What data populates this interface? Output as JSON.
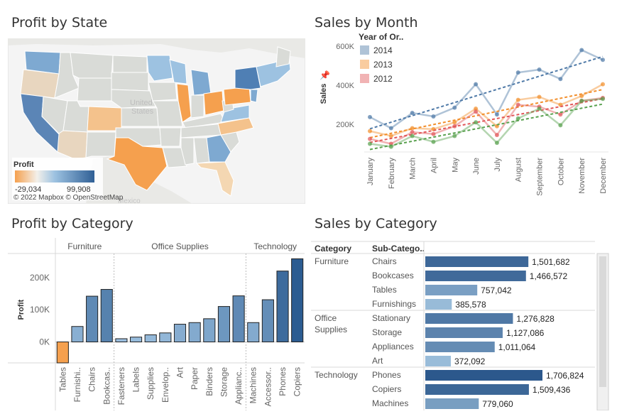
{
  "panels": {
    "map_title": "Profit by State",
    "month_title": "Sales by Month",
    "catprofit_title": "Profit by Category",
    "catsales_title": "Sales by Category"
  },
  "map": {
    "legend_title": "Profit",
    "legend_min": "-29,034",
    "legend_max": "99,908",
    "credit": "© 2022 Mapbox © OpenStreetMap",
    "ghost_labels": [
      "United",
      "States",
      "Mexico"
    ],
    "colors": {
      "negative": "#f5a04e",
      "positive": "#2f5f95",
      "neutral": "#d9d9d6",
      "land": "#e6e6e3",
      "water": "#f5f5f5"
    }
  },
  "chart_data": [
    {
      "type": "line",
      "title": "Sales by Month",
      "ylabel": "Sales",
      "legend_title": "Year of Or..",
      "legend_position": "top-left",
      "x": [
        "January",
        "February",
        "March",
        "April",
        "May",
        "June",
        "July",
        "August",
        "September",
        "October",
        "November",
        "December"
      ],
      "ylim": [
        80000,
        640000
      ],
      "yticks": [
        200000,
        400000,
        600000
      ],
      "ytick_labels": [
        "200K",
        "400K",
        "600K"
      ],
      "trend_lines": true,
      "series": [
        {
          "name": "2014",
          "color": "#4e79a7",
          "values": [
            237000,
            180000,
            258000,
            240000,
            285000,
            405000,
            250000,
            465000,
            480000,
            432000,
            580000,
            530000
          ]
        },
        {
          "name": "2013",
          "color": "#f28e2b",
          "values": [
            165000,
            140000,
            180000,
            175000,
            210000,
            280000,
            190000,
            325000,
            340000,
            300000,
            345000,
            405000
          ]
        },
        {
          "name": "2012",
          "color": "#e15759",
          "values": [
            125000,
            100000,
            160000,
            150000,
            190000,
            265000,
            145000,
            300000,
            290000,
            250000,
            320000,
            335000
          ]
        },
        {
          "name": "",
          "color": "#59a14f",
          "values": [
            100000,
            85000,
            140000,
            110000,
            140000,
            210000,
            105000,
            230000,
            280000,
            195000,
            320000,
            330000
          ]
        }
      ]
    },
    {
      "type": "bar",
      "title": "Profit by Category",
      "ylabel": "Profit",
      "ylim": [
        -65000,
        270000
      ],
      "yticks": [
        0,
        100000,
        200000
      ],
      "ytick_labels": [
        "0K",
        "100K",
        "200K"
      ],
      "groups": [
        {
          "name": "Furniture",
          "categories": [
            "Tables",
            "Furnishi..",
            "Chairs",
            "Bookcas.."
          ],
          "values": [
            -65000,
            48000,
            142000,
            163000
          ]
        },
        {
          "name": "Office Supplies",
          "categories": [
            "Fasteners",
            "Labels",
            "Supplies",
            "Envelop..",
            "Art",
            "Paper",
            "Binders",
            "Storage",
            "Applianc.."
          ],
          "values": [
            10000,
            15000,
            22000,
            28000,
            55000,
            60000,
            72000,
            110000,
            143000
          ]
        },
        {
          "name": "Technology",
          "categories": [
            "Machines",
            "Accessor..",
            "Phones",
            "Copiers"
          ],
          "values": [
            60000,
            131000,
            220000,
            258000
          ]
        }
      ]
    },
    {
      "type": "bar",
      "title": "Sales by Category",
      "orientation": "horizontal",
      "header_category": "Category",
      "header_subcategory": "Sub-Catego..",
      "xlim": [
        0,
        1706824
      ],
      "groups": [
        {
          "name": "Furniture",
          "items": [
            {
              "label": "Chairs",
              "value": 1501682,
              "text": "1,501,682"
            },
            {
              "label": "Bookcases",
              "value": 1466572,
              "text": "1,466,572"
            },
            {
              "label": "Tables",
              "value": 757042,
              "text": "757,042"
            },
            {
              "label": "Furnishings",
              "value": 385578,
              "text": "385,578"
            }
          ]
        },
        {
          "name": "Office Supplies",
          "items": [
            {
              "label": "Stationary",
              "value": 1276828,
              "text": "1,276,828"
            },
            {
              "label": "Storage",
              "value": 1127086,
              "text": "1,127,086"
            },
            {
              "label": "Appliances",
              "value": 1011064,
              "text": "1,011,064"
            },
            {
              "label": "Art",
              "value": 372092,
              "text": "372,092"
            }
          ]
        },
        {
          "name": "Technology",
          "items": [
            {
              "label": "Phones",
              "value": 1706824,
              "text": "1,706,824"
            },
            {
              "label": "Copiers",
              "value": 1509436,
              "text": "1,509,436"
            },
            {
              "label": "Machines",
              "value": 779060,
              "text": "779,060"
            }
          ]
        }
      ]
    }
  ]
}
